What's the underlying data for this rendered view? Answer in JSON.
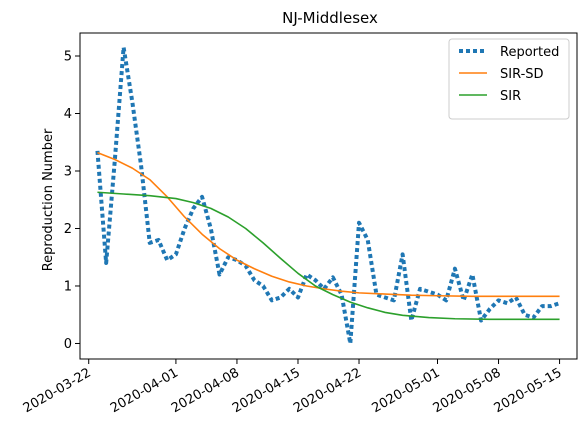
{
  "chart_data": {
    "type": "line",
    "title": "NJ-Middlesex",
    "xlabel": "",
    "ylabel": "Reproduction Number",
    "x_ticks": [
      "2020-03-22",
      "2020-04-01",
      "2020-04-08",
      "2020-04-15",
      "2020-04-22",
      "2020-05-01",
      "2020-05-08",
      "2020-05-15"
    ],
    "y_ticks": [
      "0",
      "1",
      "2",
      "3",
      "4",
      "5"
    ],
    "xlim": [
      "2020-03-21",
      "2020-05-17"
    ],
    "ylim": [
      -0.27,
      5.4
    ],
    "grid": false,
    "legend_position": "top-right",
    "series": [
      {
        "name": "Reported",
        "style": "dotted",
        "color": "#1f77b4",
        "points": [
          [
            "2020-03-23",
            3.35
          ],
          [
            "2020-03-24",
            1.4
          ],
          [
            "2020-03-25",
            3.2
          ],
          [
            "2020-03-26",
            5.15
          ],
          [
            "2020-03-27",
            4.2
          ],
          [
            "2020-03-28",
            3.1
          ],
          [
            "2020-03-29",
            1.75
          ],
          [
            "2020-03-30",
            1.8
          ],
          [
            "2020-03-31",
            1.45
          ],
          [
            "2020-04-01",
            1.55
          ],
          [
            "2020-04-02",
            2.0
          ],
          [
            "2020-04-03",
            2.35
          ],
          [
            "2020-04-04",
            2.55
          ],
          [
            "2020-04-05",
            2.0
          ],
          [
            "2020-04-06",
            1.2
          ],
          [
            "2020-04-07",
            1.5
          ],
          [
            "2020-04-08",
            1.45
          ],
          [
            "2020-04-09",
            1.35
          ],
          [
            "2020-04-10",
            1.1
          ],
          [
            "2020-04-11",
            1.0
          ],
          [
            "2020-04-12",
            0.75
          ],
          [
            "2020-04-13",
            0.8
          ],
          [
            "2020-04-14",
            0.95
          ],
          [
            "2020-04-15",
            0.8
          ],
          [
            "2020-04-16",
            1.2
          ],
          [
            "2020-04-17",
            1.1
          ],
          [
            "2020-04-18",
            0.95
          ],
          [
            "2020-04-19",
            1.15
          ],
          [
            "2020-04-20",
            0.85
          ],
          [
            "2020-04-21",
            0.0
          ],
          [
            "2020-04-22",
            2.1
          ],
          [
            "2020-04-23",
            1.8
          ],
          [
            "2020-04-24",
            0.85
          ],
          [
            "2020-04-25",
            0.8
          ],
          [
            "2020-04-26",
            0.75
          ],
          [
            "2020-04-27",
            1.55
          ],
          [
            "2020-04-28",
            0.4
          ],
          [
            "2020-04-29",
            0.95
          ],
          [
            "2020-04-30",
            0.9
          ],
          [
            "2020-05-01",
            0.85
          ],
          [
            "2020-05-02",
            0.75
          ],
          [
            "2020-05-03",
            1.3
          ],
          [
            "2020-05-04",
            0.75
          ],
          [
            "2020-05-05",
            1.2
          ],
          [
            "2020-05-06",
            0.4
          ],
          [
            "2020-05-07",
            0.6
          ],
          [
            "2020-05-08",
            0.75
          ],
          [
            "2020-05-09",
            0.7
          ],
          [
            "2020-05-10",
            0.8
          ],
          [
            "2020-05-11",
            0.5
          ],
          [
            "2020-05-12",
            0.45
          ],
          [
            "2020-05-13",
            0.65
          ],
          [
            "2020-05-14",
            0.65
          ],
          [
            "2020-05-15",
            0.7
          ]
        ]
      },
      {
        "name": "SIR-SD",
        "style": "solid",
        "color": "#ff7f0e",
        "points": [
          [
            "2020-03-23",
            3.32
          ],
          [
            "2020-03-25",
            3.2
          ],
          [
            "2020-03-27",
            3.05
          ],
          [
            "2020-03-29",
            2.85
          ],
          [
            "2020-03-31",
            2.55
          ],
          [
            "2020-04-02",
            2.2
          ],
          [
            "2020-04-04",
            1.9
          ],
          [
            "2020-04-06",
            1.65
          ],
          [
            "2020-04-08",
            1.45
          ],
          [
            "2020-04-10",
            1.3
          ],
          [
            "2020-04-12",
            1.17
          ],
          [
            "2020-04-14",
            1.07
          ],
          [
            "2020-04-16",
            1.0
          ],
          [
            "2020-04-18",
            0.95
          ],
          [
            "2020-04-20",
            0.91
          ],
          [
            "2020-04-22",
            0.88
          ],
          [
            "2020-04-25",
            0.86
          ],
          [
            "2020-04-28",
            0.84
          ],
          [
            "2020-05-01",
            0.83
          ],
          [
            "2020-05-05",
            0.82
          ],
          [
            "2020-05-10",
            0.82
          ],
          [
            "2020-05-15",
            0.82
          ]
        ]
      },
      {
        "name": "SIR",
        "style": "solid",
        "color": "#2ca02c",
        "points": [
          [
            "2020-03-23",
            2.63
          ],
          [
            "2020-03-26",
            2.6
          ],
          [
            "2020-03-29",
            2.57
          ],
          [
            "2020-04-01",
            2.52
          ],
          [
            "2020-04-03",
            2.45
          ],
          [
            "2020-04-05",
            2.35
          ],
          [
            "2020-04-07",
            2.2
          ],
          [
            "2020-04-09",
            2.0
          ],
          [
            "2020-04-11",
            1.75
          ],
          [
            "2020-04-13",
            1.48
          ],
          [
            "2020-04-15",
            1.22
          ],
          [
            "2020-04-17",
            1.0
          ],
          [
            "2020-04-19",
            0.85
          ],
          [
            "2020-04-21",
            0.72
          ],
          [
            "2020-04-23",
            0.62
          ],
          [
            "2020-04-25",
            0.54
          ],
          [
            "2020-04-27",
            0.49
          ],
          [
            "2020-04-30",
            0.45
          ],
          [
            "2020-05-03",
            0.43
          ],
          [
            "2020-05-07",
            0.42
          ],
          [
            "2020-05-11",
            0.42
          ],
          [
            "2020-05-15",
            0.42
          ]
        ]
      }
    ]
  }
}
